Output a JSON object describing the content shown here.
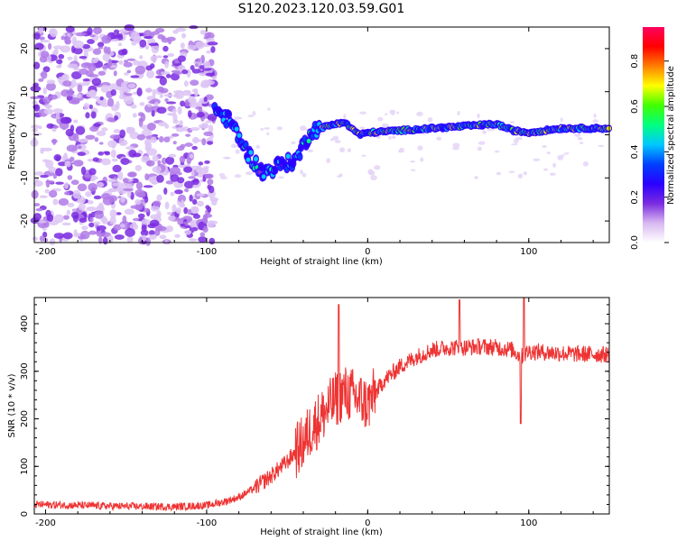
{
  "title": "S120.2023.120.03.59.G01",
  "chart_data": [
    {
      "type": "heatmap",
      "title": "",
      "xlabel": "Height of straight line (km)",
      "ylabel": "Frequency (Hz)",
      "xlim": [
        -207,
        150
      ],
      "ylim": [
        -25,
        25
      ],
      "xticks": [
        -200,
        -100,
        0,
        100
      ],
      "yticks": [
        -20,
        -10,
        0,
        10,
        20
      ],
      "colorbar": {
        "label": "Normalized spectral amplitude",
        "range": [
          0.0,
          0.95
        ],
        "ticks": [
          "0.0",
          "0.2",
          "0.4",
          "0.6",
          "0.8"
        ],
        "colors": [
          "#ffffff",
          "#d8b8f0",
          "#7a2be0",
          "#2a00ff",
          "#0040ff",
          "#00c8ff",
          "#00ff80",
          "#40ff00",
          "#ffff00",
          "#ff8000",
          "#ff0000",
          "#ff0060"
        ]
      },
      "ridge": {
        "description_points_x": [
          -95,
          -85,
          -75,
          -65,
          -55,
          -45,
          -35,
          -25,
          -15,
          -5,
          0,
          20,
          40,
          60,
          80,
          90,
          100,
          120,
          150
        ],
        "freq_hz": [
          6,
          3,
          -4,
          -9,
          -7,
          -6,
          1,
          2,
          3,
          0,
          0.5,
          1,
          1.5,
          2,
          2.5,
          1,
          0.5,
          1.5,
          1.5
        ]
      }
    },
    {
      "type": "line",
      "title": "",
      "xlabel": "Height of straight line (km)",
      "ylabel": "SNR (10 * v/v)",
      "xlim": [
        -207,
        150
      ],
      "ylim": [
        0,
        455
      ],
      "xticks": [
        -200,
        -100,
        0,
        100
      ],
      "yticks": [
        0,
        100,
        200,
        300,
        400
      ],
      "color": "#ee3333",
      "series": [
        {
          "name": "SNR",
          "x": [
            -207,
            -180,
            -150,
            -120,
            -100,
            -90,
            -80,
            -70,
            -60,
            -50,
            -40,
            -35,
            -30,
            -25,
            -20,
            -15,
            -10,
            -5,
            0,
            10,
            20,
            30,
            40,
            50,
            60,
            70,
            80,
            90,
            95,
            100,
            110,
            120,
            130,
            140,
            150
          ],
          "values": [
            20,
            18,
            16,
            15,
            18,
            25,
            35,
            55,
            80,
            110,
            150,
            180,
            200,
            220,
            240,
            255,
            250,
            240,
            230,
            280,
            310,
            330,
            345,
            350,
            350,
            352,
            350,
            345,
            330,
            342,
            340,
            338,
            336,
            336,
            335
          ]
        }
      ],
      "spikes": [
        {
          "x": -18,
          "y": 440
        },
        {
          "x": 57,
          "y": 450
        },
        {
          "x": 97,
          "y": 455
        },
        {
          "x": 95,
          "y": 190
        }
      ]
    }
  ]
}
